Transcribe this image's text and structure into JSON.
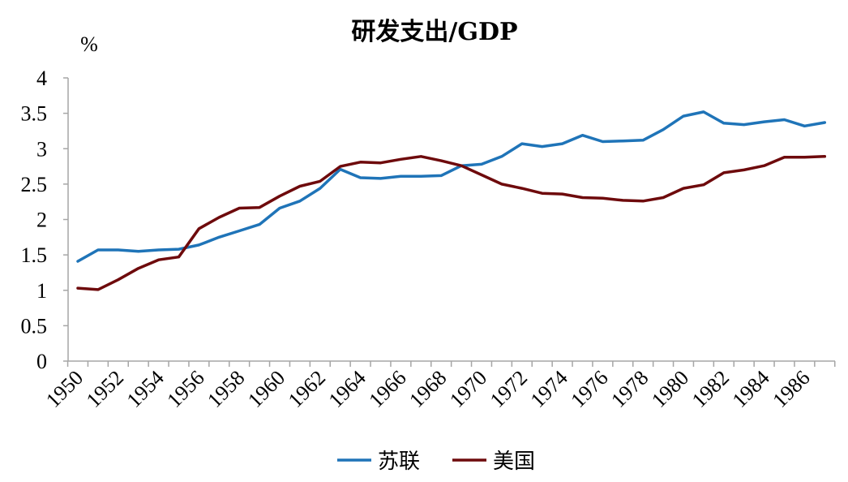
{
  "chart_data": {
    "type": "line",
    "title": "研发支出/GDP",
    "ylabel": "%",
    "ylim": [
      0,
      4
    ],
    "yticks": [
      "0",
      "0.5",
      "1",
      "1.5",
      "2",
      "2.5",
      "3",
      "3.5",
      "4"
    ],
    "xticks": [
      "1950",
      "1952",
      "1954",
      "1956",
      "1958",
      "1960",
      "1962",
      "1964",
      "1966",
      "1968",
      "1970",
      "1972",
      "1974",
      "1976",
      "1978",
      "1980",
      "1982",
      "1984",
      "1986"
    ],
    "x": [
      1950,
      1951,
      1952,
      1953,
      1954,
      1955,
      1956,
      1957,
      1958,
      1959,
      1960,
      1961,
      1962,
      1963,
      1964,
      1965,
      1966,
      1967,
      1968,
      1969,
      1970,
      1971,
      1972,
      1973,
      1974,
      1975,
      1976,
      1977,
      1978,
      1979,
      1980,
      1981,
      1982,
      1983,
      1984,
      1985,
      1986,
      1987
    ],
    "grid": false,
    "legend_position": "bottom",
    "series": [
      {
        "name": "苏联",
        "color": "#1f74b8",
        "values": [
          1.41,
          1.57,
          1.57,
          1.55,
          1.57,
          1.58,
          1.64,
          1.75,
          1.84,
          1.93,
          2.16,
          2.26,
          2.44,
          2.71,
          2.59,
          2.58,
          2.61,
          2.61,
          2.62,
          2.76,
          2.78,
          2.89,
          3.07,
          3.03,
          3.07,
          3.19,
          3.1,
          3.11,
          3.12,
          3.27,
          3.46,
          3.52,
          3.36,
          3.34,
          3.38,
          3.41,
          3.32,
          3.37
        ]
      },
      {
        "name": "美国",
        "color": "#6e0a0c",
        "values": [
          1.03,
          1.01,
          1.15,
          1.31,
          1.43,
          1.47,
          1.87,
          2.03,
          2.16,
          2.17,
          2.33,
          2.47,
          2.54,
          2.75,
          2.81,
          2.8,
          2.85,
          2.89,
          2.83,
          2.76,
          2.63,
          2.5,
          2.44,
          2.37,
          2.36,
          2.31,
          2.3,
          2.27,
          2.26,
          2.31,
          2.44,
          2.49,
          2.66,
          2.7,
          2.76,
          2.88,
          2.88,
          2.89
        ]
      }
    ]
  }
}
